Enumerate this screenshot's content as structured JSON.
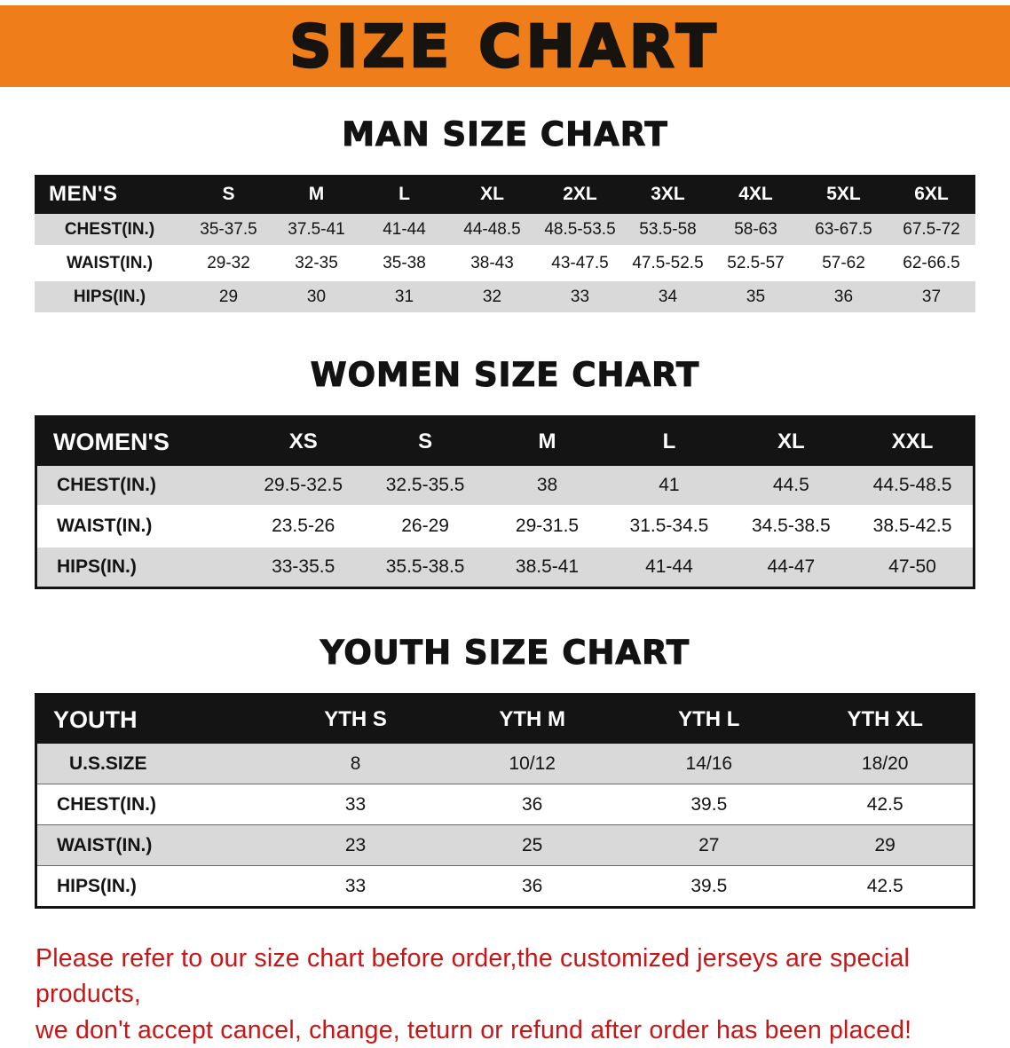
{
  "banner": {
    "title": "SIZE CHART",
    "bg_color": "#ee7d1a",
    "text_color": "#17130e"
  },
  "chart_data": [
    {
      "type": "table",
      "title": "MAN SIZE CHART",
      "columns": [
        "MEN'S",
        "S",
        "M",
        "L",
        "XL",
        "2XL",
        "3XL",
        "4XL",
        "5XL",
        "6XL"
      ],
      "rows": [
        [
          "CHEST(IN.)",
          "35-37.5",
          "37.5-41",
          "41-44",
          "44-48.5",
          "48.5-53.5",
          "53.5-58",
          "58-63",
          "63-67.5",
          "67.5-72"
        ],
        [
          "WAIST(IN.)",
          "29-32",
          "32-35",
          "35-38",
          "38-43",
          "43-47.5",
          "47.5-52.5",
          "52.5-57",
          "57-62",
          "62-66.5"
        ],
        [
          "HIPS(IN.)",
          "29",
          "30",
          "31",
          "32",
          "33",
          "34",
          "35",
          "36",
          "37"
        ]
      ]
    },
    {
      "type": "table",
      "title": "WOMEN SIZE CHART",
      "columns": [
        "WOMEN'S",
        "XS",
        "S",
        "M",
        "L",
        "XL",
        "XXL"
      ],
      "rows": [
        [
          "CHEST(IN.)",
          "29.5-32.5",
          "32.5-35.5",
          "38",
          "41",
          "44.5",
          "44.5-48.5"
        ],
        [
          "WAIST(IN.)",
          "23.5-26",
          "26-29",
          "29-31.5",
          "31.5-34.5",
          "34.5-38.5",
          "38.5-42.5"
        ],
        [
          "HIPS(IN.)",
          "33-35.5",
          "35.5-38.5",
          "38.5-41",
          "41-44",
          "44-47",
          "47-50"
        ]
      ]
    },
    {
      "type": "table",
      "title": "YOUTH SIZE CHART",
      "columns": [
        "YOUTH",
        "YTH S",
        "YTH M",
        "YTH L",
        "YTH XL"
      ],
      "rows": [
        [
          "U.S.SIZE",
          "8",
          "10/12",
          "14/16",
          "18/20"
        ],
        [
          "CHEST(IN.)",
          "33",
          "36",
          "39.5",
          "42.5"
        ],
        [
          "WAIST(IN.)",
          "23",
          "25",
          "27",
          "29"
        ],
        [
          "HIPS(IN.)",
          "33",
          "36",
          "39.5",
          "42.5"
        ]
      ]
    }
  ],
  "disclaimer": {
    "lines": [
      "Please refer to our size chart before order,the customized jerseys are special products,",
      "we don't accept cancel, change, teturn or refund after order has been placed!"
    ],
    "color": "#c81616"
  }
}
